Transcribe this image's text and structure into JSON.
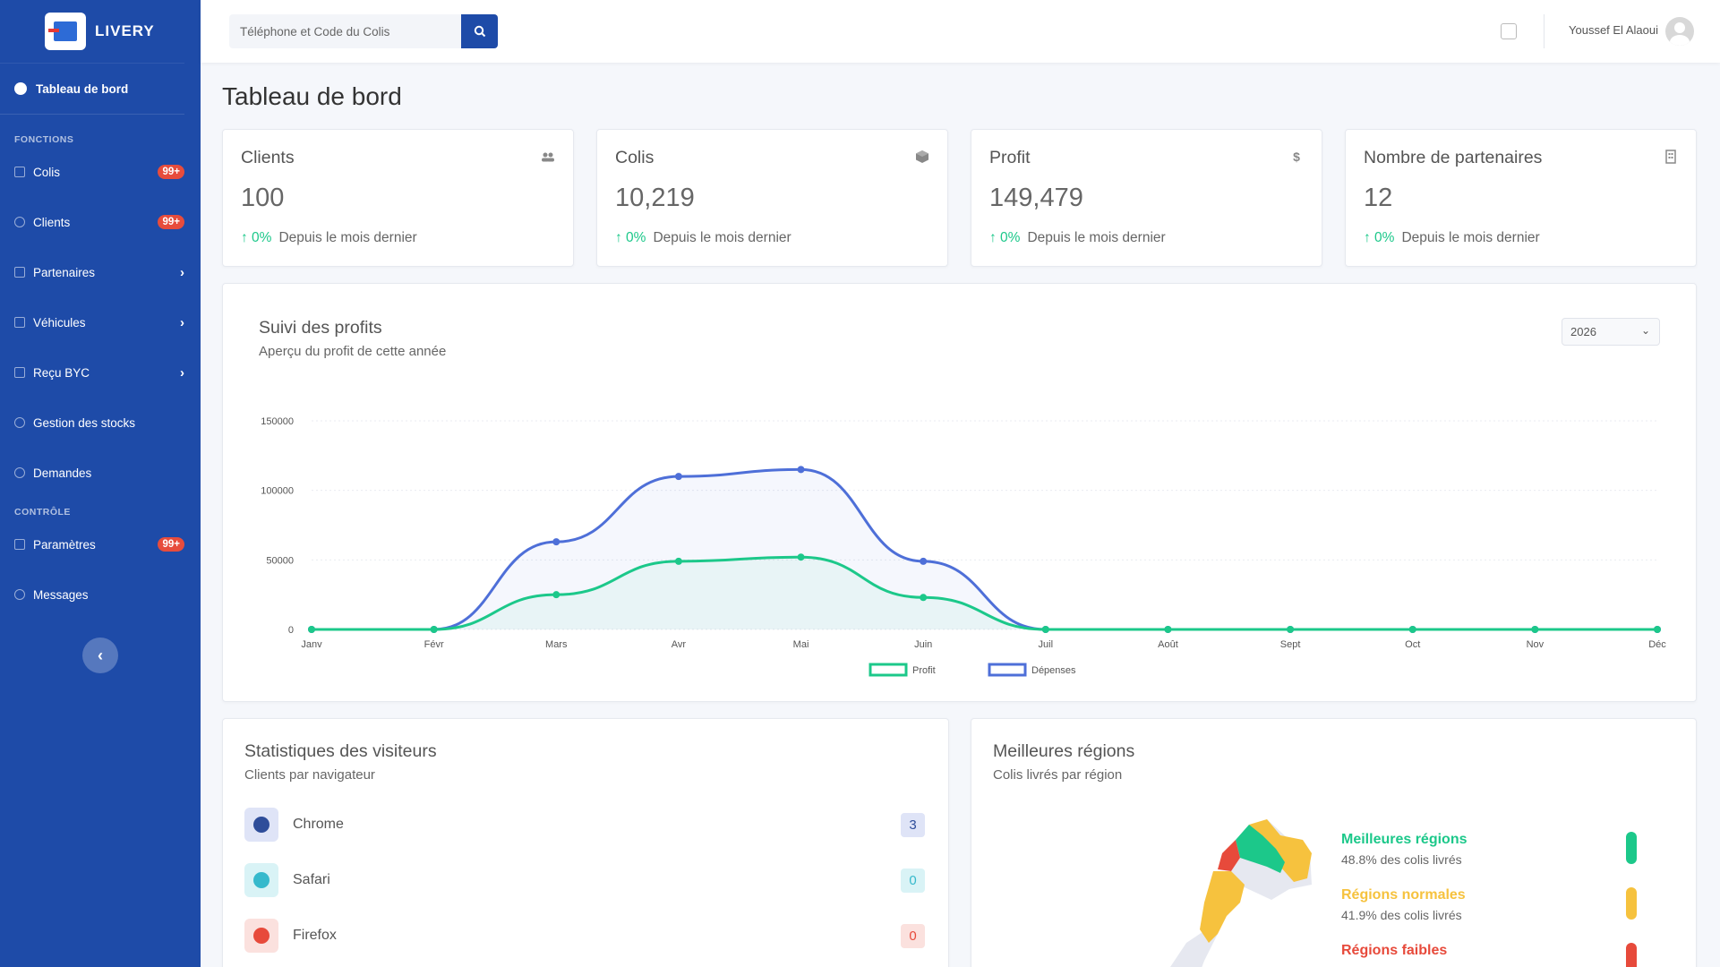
{
  "brand": {
    "name": "LIVERY"
  },
  "sidebar": {
    "active": "Tableau de bord",
    "section_fonctions": "FONCTIONS",
    "section_controle": "CONTRÔLE",
    "items": [
      {
        "label": "Colis",
        "badge": "99+"
      },
      {
        "label": "Clients",
        "badge": "99+"
      },
      {
        "label": "Partenaires",
        "chevron": "›"
      },
      {
        "label": "Véhicules",
        "chevron": "›"
      },
      {
        "label": "Reçu BYC",
        "chevron": "›"
      },
      {
        "label": "Gestion des stocks"
      },
      {
        "label": "Demandes"
      }
    ],
    "control_items": [
      {
        "label": "Paramètres",
        "badge": "99+"
      },
      {
        "label": "Messages"
      }
    ],
    "collapse_label": "‹"
  },
  "topbar": {
    "search_placeholder": "Téléphone et Code du Colis",
    "username": "Youssef El Alaoui"
  },
  "page": {
    "title": "Tableau de bord"
  },
  "stats": [
    {
      "title": "Clients",
      "value": "100",
      "change": "↑ 0%",
      "note": "Depuis le mois dernier",
      "icon": "users-icon"
    },
    {
      "title": "Colis",
      "value": "10,219",
      "change": "↑ 0%",
      "note": "Depuis le mois dernier",
      "icon": "box-icon"
    },
    {
      "title": "Profit",
      "value": "149,479",
      "change": "↑ 0%",
      "note": "Depuis le mois dernier",
      "icon": "dollar-icon",
      "symbol": "$"
    },
    {
      "title": "Nombre de partenaires",
      "value": "12",
      "change": "↑ 0%",
      "note": "Depuis le mois dernier",
      "icon": "building-icon"
    }
  ],
  "profit_chart": {
    "title": "Suivi des profits",
    "subtitle": "Aperçu du profit de cette année",
    "year": "2026"
  },
  "chart_data": {
    "type": "area",
    "categories": [
      "Janv",
      "Févr",
      "Mars",
      "Avr",
      "Mai",
      "Juin",
      "Juil",
      "Août",
      "Sept",
      "Oct",
      "Nov",
      "Déc"
    ],
    "yticks": [
      0,
      50000,
      100000,
      150000
    ],
    "ylim": [
      0,
      150000
    ],
    "series": [
      {
        "name": "Profit",
        "color": "#1cc88a",
        "values": [
          0,
          0,
          25000,
          49000,
          52000,
          23000,
          0,
          0,
          0,
          0,
          0,
          0
        ]
      },
      {
        "name": "Dépenses",
        "color": "#4e6fd8",
        "values": [
          0,
          0,
          63000,
          110000,
          115000,
          49000,
          0,
          0,
          0,
          0,
          0,
          0
        ]
      }
    ],
    "legend": "bottom"
  },
  "visitors": {
    "title": "Statistiques des visiteurs",
    "subtitle": "Clients par navigateur",
    "browsers": [
      {
        "name": "Chrome",
        "count": "3",
        "color": "#4e6fd8",
        "icon": "chrome-icon"
      },
      {
        "name": "Safari",
        "count": "0",
        "color": "#36b9cc",
        "icon": "safari-icon"
      },
      {
        "name": "Firefox",
        "count": "0",
        "color": "#e74a3b",
        "icon": "firefox-icon"
      }
    ]
  },
  "regions": {
    "title": "Meilleures régions",
    "subtitle": "Colis livrés par région",
    "legend": [
      {
        "title": "Meilleures régions",
        "sub": "48.8% des colis livrés",
        "color": "#1cc88a"
      },
      {
        "title": "Régions normales",
        "sub": "41.9% des colis livrés",
        "color": "#f6c23e"
      },
      {
        "title": "Régions faibles",
        "sub": "",
        "color": "#e74a3b"
      }
    ]
  }
}
